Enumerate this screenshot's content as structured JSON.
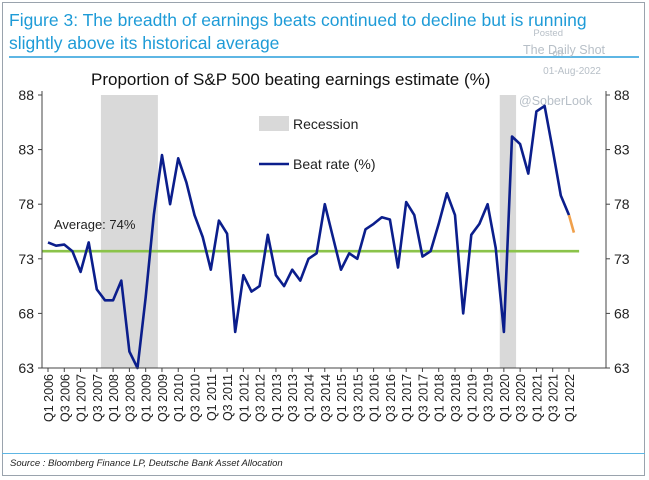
{
  "figure": {
    "title": "Figure 3: The breadth of earnings beats continued to decline but is running slightly above its historical average",
    "source": "Source : Bloomberg Finance LP, Deutsche Bank Asset Allocation"
  },
  "watermark": {
    "posted_on": "Posted on",
    "site": "The Daily Shot",
    "date": "01-Aug-2022",
    "handle": "@SoberLook"
  },
  "colors": {
    "accent": "#1e9bd7",
    "line": "#0b1e8c",
    "forecast": "#f0a04b",
    "average": "#8bc34a",
    "recession": "#d9d9d9"
  },
  "chart_data": {
    "type": "line",
    "title": "Proportion of S&P 500 beating earnings estimate (%)",
    "xlabel": "",
    "ylabel": "",
    "ylim": [
      63,
      88
    ],
    "yticks": [
      63,
      68,
      73,
      78,
      83,
      88
    ],
    "grid": false,
    "legend_position": "top-center",
    "x_tick_labels": [
      "Q1 2006",
      "Q3 2006",
      "Q1 2007",
      "Q3 2007",
      "Q1 2008",
      "Q3 2008",
      "Q1 2009",
      "Q3 2009",
      "Q1 2010",
      "Q3 2010",
      "Q1 2011",
      "Q3 2011",
      "Q1 2012",
      "Q3 2012",
      "Q1 2013",
      "Q3 2013",
      "Q1 2014",
      "Q3 2014",
      "Q1 2015",
      "Q3 2015",
      "Q1 2016",
      "Q3 2016",
      "Q1 2017",
      "Q3 2017",
      "Q1 2018",
      "Q3 2018",
      "Q1 2019",
      "Q3 2019",
      "Q1 2020",
      "Q3 2020",
      "Q1 2021",
      "Q3 2021",
      "Q1 2022"
    ],
    "series": [
      {
        "name": "Beat rate (%)",
        "color": "#0b1e8c",
        "values": [
          74.5,
          74.2,
          74.3,
          73.7,
          71.8,
          74.5,
          70.2,
          69.2,
          69.2,
          71.0,
          64.5,
          63.0,
          69.5,
          77.0,
          82.5,
          78.0,
          82.2,
          80.0,
          77.0,
          75.0,
          72.0,
          76.5,
          75.3,
          66.3,
          71.5,
          70.0,
          70.5,
          75.2,
          71.5,
          70.5,
          72.0,
          71.0,
          73.0,
          73.5,
          78.0,
          75.0,
          72.0,
          73.5,
          73.0,
          75.7,
          76.2,
          76.8,
          76.6,
          72.2,
          78.2,
          77.0,
          73.2,
          73.7,
          76.2,
          79.0,
          77.0,
          68.0,
          75.2,
          76.2,
          78.0,
          74.0,
          66.3,
          84.2,
          83.5,
          80.8,
          86.5,
          87.0,
          83.0,
          78.8,
          77.0
        ]
      },
      {
        "name": "",
        "color": "#f0a04b",
        "values": [
          77.0,
          75.4
        ]
      }
    ],
    "average": {
      "label": "Average: 74%",
      "value": 73.7
    },
    "recessions": [
      {
        "label": "Recession",
        "start": "Q4 2007",
        "end": "Q2 2009"
      },
      {
        "start": "Q1 2020",
        "end": "Q2 2020"
      }
    ],
    "legend": {
      "recession_label": "Recession",
      "line_label": "Beat rate (%)"
    }
  }
}
